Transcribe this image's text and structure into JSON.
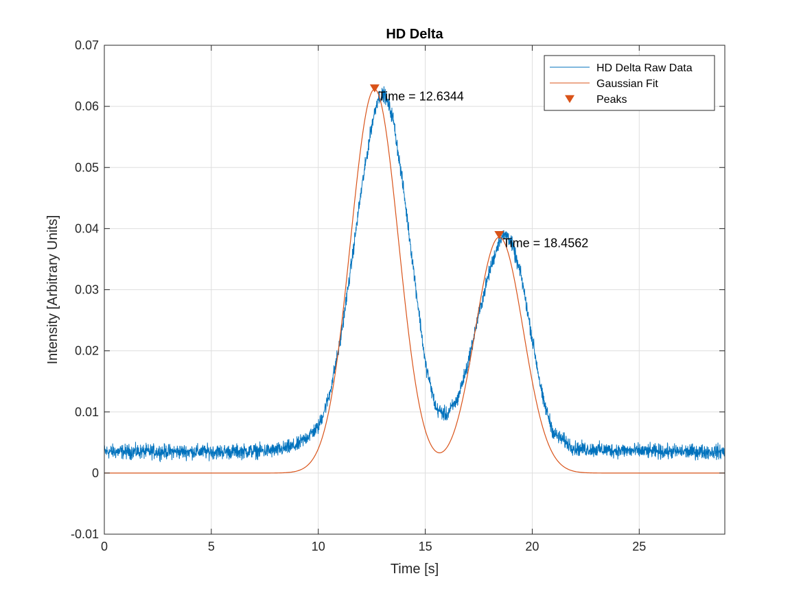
{
  "chart_data": {
    "type": "line",
    "title": "HD Delta",
    "xlabel": "Time [s]",
    "ylabel": "Intensity [Arbitrary Units]",
    "xlim": [
      0,
      29
    ],
    "ylim": [
      -0.01,
      0.07
    ],
    "xticks": [
      0,
      5,
      10,
      15,
      20,
      25
    ],
    "xtick_labels": [
      "0",
      "5",
      "10",
      "15",
      "20",
      "25"
    ],
    "yticks": [
      -0.01,
      0,
      0.01,
      0.02,
      0.03,
      0.04,
      0.05,
      0.06,
      0.07
    ],
    "ytick_labels": [
      "-0.01",
      "0",
      "0.01",
      "0.02",
      "0.03",
      "0.04",
      "0.05",
      "0.06",
      "0.07"
    ],
    "grid": true,
    "legend_position": "top-right",
    "series": [
      {
        "name": "HD Delta Raw Data",
        "color": "#0072bd",
        "kind": "line",
        "baseline": 0.0035,
        "noise_amplitude": 0.0012,
        "samples": 2900,
        "x": [
          0,
          2,
          4,
          6,
          8,
          9,
          10,
          10.5,
          11,
          11.5,
          12,
          12.5,
          12.8,
          13.1,
          13.5,
          14,
          14.5,
          15,
          15.5,
          16,
          16.5,
          17,
          17.5,
          18,
          18.5,
          18.8,
          19,
          19.5,
          20,
          20.5,
          21,
          22,
          24,
          26,
          29
        ],
        "y": [
          0.0035,
          0.0035,
          0.0035,
          0.0035,
          0.0037,
          0.0045,
          0.0075,
          0.0125,
          0.021,
          0.033,
          0.046,
          0.057,
          0.0615,
          0.062,
          0.058,
          0.046,
          0.032,
          0.018,
          0.0105,
          0.0095,
          0.012,
          0.018,
          0.026,
          0.033,
          0.0385,
          0.039,
          0.038,
          0.032,
          0.022,
          0.012,
          0.0065,
          0.004,
          0.0037,
          0.0035,
          0.0035
        ]
      },
      {
        "name": "Gaussian Fit",
        "color": "#d95319",
        "kind": "gaussian_sum",
        "components": [
          {
            "amplitude": 0.0628,
            "center": 12.63,
            "sigma": 1.12
          },
          {
            "amplitude": 0.0386,
            "center": 18.46,
            "sigma": 1.12
          }
        ]
      },
      {
        "name": "Peaks",
        "color": "#d95319",
        "kind": "markers",
        "marker": "triangle-down",
        "x": [
          12.6344,
          18.4562
        ],
        "y": [
          0.063,
          0.039
        ]
      }
    ],
    "annotations": [
      {
        "text": "Time = 12.6344",
        "x": 12.6344,
        "y": 0.063
      },
      {
        "text": "Time = 18.4562",
        "x": 18.4562,
        "y": 0.039
      }
    ]
  }
}
